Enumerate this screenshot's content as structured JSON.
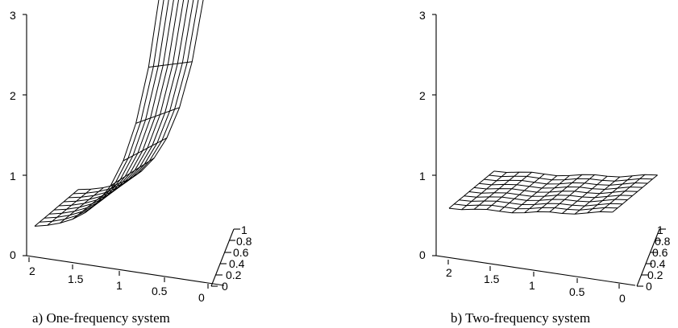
{
  "chart_data": [
    {
      "type": "surface",
      "caption": "a) One-frequency system",
      "xlim": [
        0,
        2
      ],
      "ylim": [
        0,
        1
      ],
      "zlim": [
        0,
        3
      ],
      "x_ticks": [
        "2",
        "1.5",
        "1",
        "0.5",
        "0"
      ],
      "y_ticks": [
        "0",
        "0.2",
        "0.4",
        "0.6",
        "0.8",
        "1"
      ],
      "z_ticks": [
        "0",
        "1",
        "2",
        "3"
      ],
      "grid_x": [
        2.0,
        1.85,
        1.7,
        1.55,
        1.4,
        1.25,
        1.1,
        0.95,
        0.8,
        0.65,
        0.5,
        0.35,
        0.2,
        0.05
      ],
      "grid_y": [
        0.0,
        0.111,
        0.222,
        0.333,
        0.444,
        0.556,
        0.667,
        0.778,
        0.889,
        1.0
      ],
      "surface_model": {
        "kind": "peak",
        "base": 0.33,
        "k": 0.07,
        "b": 2.6,
        "peak": 1.5,
        "tilt": 0.05
      }
    },
    {
      "type": "surface",
      "caption": "b) Two-frequency system",
      "xlim": [
        0,
        2
      ],
      "ylim": [
        0,
        1
      ],
      "zlim": [
        0,
        3
      ],
      "x_ticks": [
        "2",
        "1.5",
        "1",
        "0.5",
        "0"
      ],
      "y_ticks": [
        "0",
        "0.2",
        "0.4",
        "0.6",
        "0.8",
        "1"
      ],
      "z_ticks": [
        "0",
        "1",
        "2",
        "3"
      ],
      "grid_x": [
        2.0,
        1.85,
        1.7,
        1.55,
        1.4,
        1.25,
        1.1,
        0.95,
        0.8,
        0.65,
        0.5,
        0.35,
        0.2,
        0.05
      ],
      "grid_y": [
        0.0,
        0.111,
        0.222,
        0.333,
        0.444,
        0.556,
        0.667,
        0.778,
        0.889,
        1.0
      ],
      "surface_model": {
        "kind": "ramp",
        "base": 0.85,
        "slope": 0.26,
        "end": 1.3,
        "tilt": 0.06
      }
    }
  ]
}
